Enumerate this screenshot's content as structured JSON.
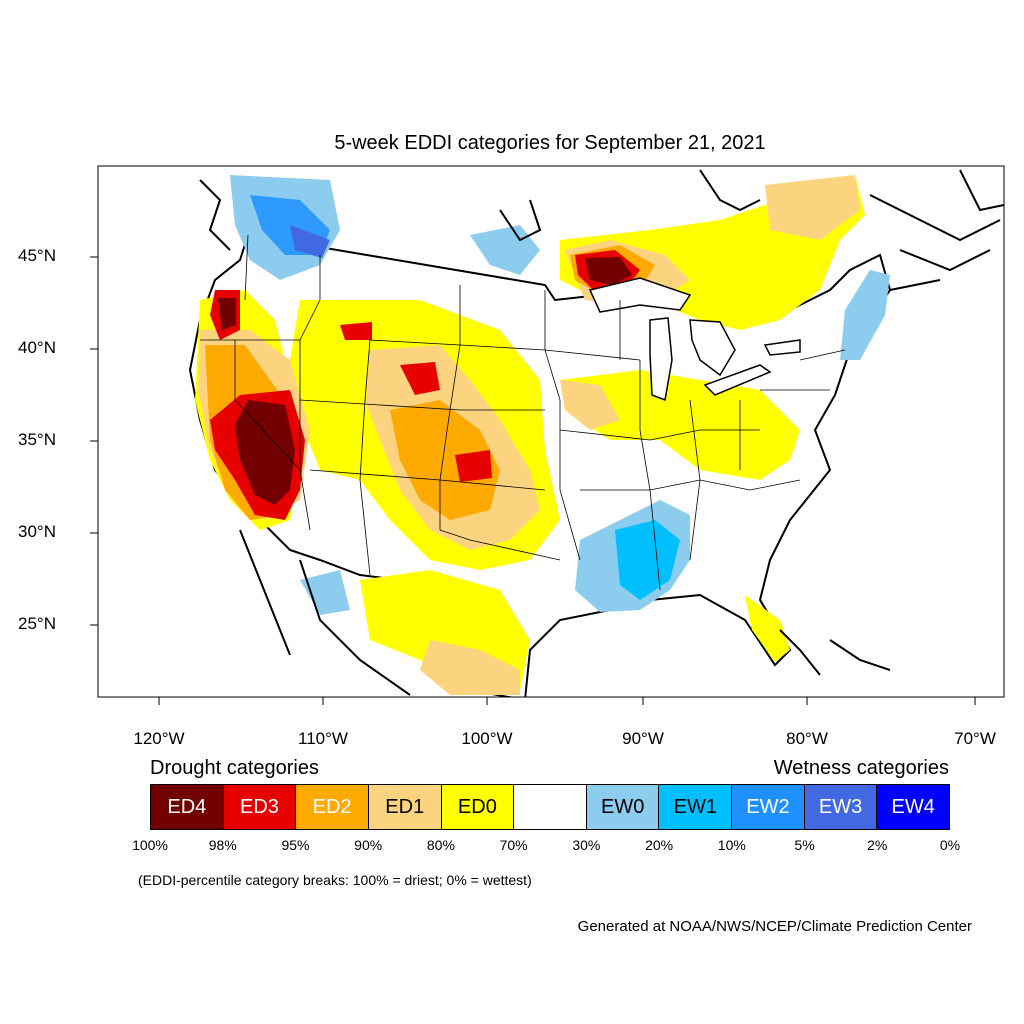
{
  "title": "5-week EDDI categories for September 21, 2021",
  "lat_labels": [
    "45°N",
    "40°N",
    "35°N",
    "30°N",
    "25°N"
  ],
  "lon_labels": [
    "120°W",
    "110°W",
    "100°W",
    "90°W",
    "80°W",
    "70°W"
  ],
  "legend": {
    "drought_heading": "Drought categories",
    "wetness_heading": "Wetness categories",
    "categories": [
      {
        "label": "ED4",
        "color": "#730000",
        "text_color": "#ffffff"
      },
      {
        "label": "ED3",
        "color": "#e60000",
        "text_color": "#ffffff"
      },
      {
        "label": "ED2",
        "color": "#ffaa00",
        "text_color": "#ffffff"
      },
      {
        "label": "ED1",
        "color": "#fcd37f",
        "text_color": "#000000"
      },
      {
        "label": "ED0",
        "color": "#ffff00",
        "text_color": "#000000"
      },
      {
        "label": "",
        "color": "#ffffff",
        "text_color": "#000000"
      },
      {
        "label": "EW0",
        "color": "#8ccdef",
        "text_color": "#000000"
      },
      {
        "label": "EW1",
        "color": "#00bfff",
        "text_color": "#000000"
      },
      {
        "label": "EW2",
        "color": "#1e90ff",
        "text_color": "#ffffff"
      },
      {
        "label": "EW3",
        "color": "#4169e1",
        "text_color": "#ffffff"
      },
      {
        "label": "EW4",
        "color": "#0000ff",
        "text_color": "#ffffff"
      }
    ],
    "breaks": [
      "100%",
      "98%",
      "95%",
      "90%",
      "80%",
      "70%",
      "30%",
      "20%",
      "10%",
      "5%",
      "2%",
      "0%"
    ]
  },
  "note": "(EDDI-percentile category breaks: 100% = driest; 0% = wettest)",
  "credit": "Generated at NOAA/NWS/NCEP/Climate Prediction Center"
}
